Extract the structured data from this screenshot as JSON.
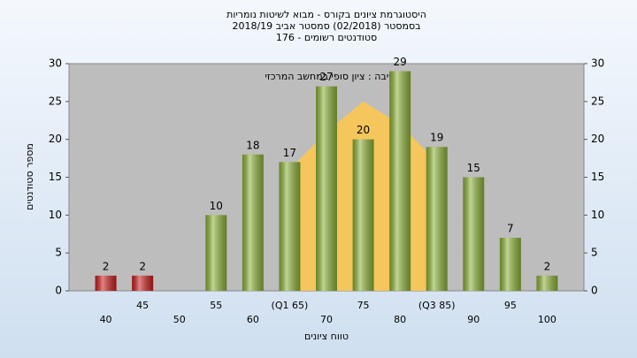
{
  "chart_data": {
    "type": "bar",
    "title_lines": [
      "היסטוגרמת ציונים בקורס - מבוא לשיטות נומריות",
      "בסמסטר  (02/2018)  סמסטר אביב 2018/19",
      "סטודנטים רשומים - 176"
    ],
    "annotation": "בחשיבה : ציון סופי במחשב המרכזי",
    "x_label": "טווח ציונים",
    "y_label": "מספר סטודנטים",
    "categories": [
      "40",
      "45",
      "50",
      "55",
      "60",
      "(Q1 65)",
      "70",
      "75",
      "80",
      "(Q3 85)",
      "90",
      "95",
      "100"
    ],
    "values": [
      2,
      2,
      null,
      10,
      18,
      17,
      27,
      20,
      29,
      19,
      15,
      7,
      2
    ],
    "colors": [
      "#cc1f1f",
      "#cc1f1f",
      "#8fb43a",
      "#8fb43a",
      "#8fb43a",
      "#8fb43a",
      "#8fb43a",
      "#8fb43a",
      "#8fb43a",
      "#8fb43a",
      "#8fb43a",
      "#8fb43a",
      "#8fb43a"
    ],
    "overlay": {
      "color": "#ffc84a",
      "values": [
        null,
        null,
        null,
        null,
        null,
        16,
        21,
        25,
        22,
        17,
        null,
        null,
        null
      ]
    },
    "ylim": [
      0,
      30
    ],
    "yticks": [
      0,
      5,
      10,
      15,
      20,
      25,
      30
    ],
    "grid": false
  }
}
